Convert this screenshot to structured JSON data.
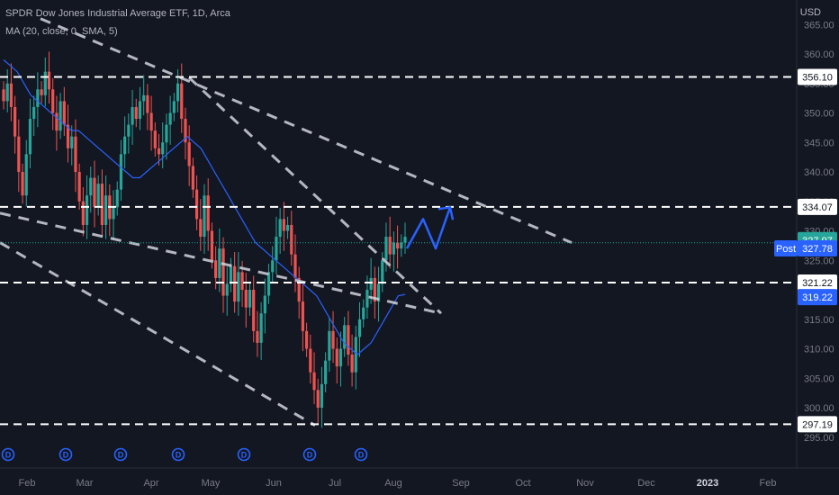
{
  "legend": {
    "title": "SPDR Dow Jones Industrial Average ETF, 1D, Arca",
    "indicator": "MA (20, close, 0, SMA, 5)"
  },
  "currency": "USD",
  "colors": {
    "background": "#131722",
    "up": "#26a69a",
    "down": "#ef5350",
    "ma_line": "#2962ff",
    "level_line": "#ffffff",
    "trend_line": "#d1d4dc",
    "projection": "#2962ff",
    "last_price_tag": "#26a69a",
    "post_tag": "#2962ff",
    "ma_tag": "#2962ff"
  },
  "chart_data": {
    "type": "candlestick",
    "title": "SPDR Dow Jones Industrial Average ETF, 1D, Arca",
    "y_axis": {
      "ticks": [
        295,
        300,
        305,
        310,
        315,
        320,
        325,
        330,
        335,
        340,
        345,
        350,
        355,
        360,
        365
      ],
      "ylim": [
        293.5,
        367.0
      ],
      "position": "right"
    },
    "x_axis": {
      "labels": [
        "Feb",
        "Mar",
        "Apr",
        "May",
        "Jun",
        "Jul",
        "Aug",
        "Sep",
        "Oct",
        "Nov",
        "Dec",
        "2023",
        "Feb"
      ],
      "bold_labels": [
        "2023"
      ]
    },
    "price_levels": [
      {
        "label": "356.10",
        "value": 356.1,
        "style": "dashed"
      },
      {
        "label": "334.07",
        "value": 334.07,
        "style": "dashed"
      },
      {
        "label": "321.22",
        "value": 321.22,
        "style": "dashed"
      },
      {
        "label": "297.19",
        "value": 297.19,
        "style": "dashed"
      }
    ],
    "price_tags": [
      {
        "label": "327.97",
        "value": 327.97,
        "kind": "last"
      },
      {
        "label": "Post",
        "value_label": "327.78",
        "value": 327.78,
        "kind": "post"
      },
      {
        "label": "319.22",
        "value": 319.22,
        "kind": "ma"
      }
    ],
    "closes": [
      352,
      355,
      351,
      346,
      340,
      336,
      343,
      349,
      351,
      354,
      353,
      357,
      354,
      350,
      347,
      352,
      348,
      344,
      346,
      340,
      335,
      331,
      336,
      339,
      334,
      338,
      331,
      336,
      332,
      334,
      337,
      343,
      346,
      348,
      351,
      349,
      352,
      353,
      350,
      347,
      344,
      343,
      345,
      348,
      350,
      352,
      355,
      349,
      345,
      341,
      337,
      332,
      329,
      336,
      330,
      325,
      322,
      327,
      319,
      321,
      324,
      318,
      323,
      320,
      317,
      320,
      313,
      311,
      316,
      319,
      323,
      325,
      329,
      332,
      330,
      331,
      326,
      322,
      318,
      313,
      310,
      306,
      303,
      300,
      304,
      308,
      313,
      310,
      307,
      310,
      314,
      309,
      306,
      312,
      315,
      317,
      320,
      322,
      318,
      321,
      325,
      329,
      326,
      328,
      327,
      328,
      329
    ],
    "ma_values": [
      359,
      358,
      357,
      355,
      353,
      352,
      351,
      350,
      349,
      348,
      347,
      347,
      346,
      345,
      344,
      343,
      342,
      341,
      340,
      339,
      339,
      340,
      341,
      342,
      343,
      344,
      345,
      346,
      345,
      344,
      342,
      340,
      338,
      336,
      334,
      332,
      330,
      328,
      327,
      326,
      325,
      324,
      323,
      322,
      321,
      320,
      319,
      317,
      315,
      313,
      311,
      310,
      309,
      310,
      311,
      313,
      315,
      317,
      319,
      319.22
    ],
    "trend_lines": [
      {
        "from": [
          45,
          366
        ],
        "to": [
          635,
          328
        ]
      },
      {
        "from": [
          0,
          333
        ],
        "to": [
          490,
          316
        ]
      },
      {
        "from": [
          0,
          328
        ],
        "to": [
          350,
          297
        ]
      },
      {
        "from": [
          210,
          356
        ],
        "to": [
          490,
          316
        ]
      }
    ],
    "projection": [
      [
        452,
        327
      ],
      [
        470,
        332
      ],
      [
        484,
        327
      ],
      [
        500,
        334
      ]
    ],
    "dividend_markers": [
      "D",
      "D",
      "D",
      "D",
      "D",
      "D",
      "D"
    ]
  }
}
